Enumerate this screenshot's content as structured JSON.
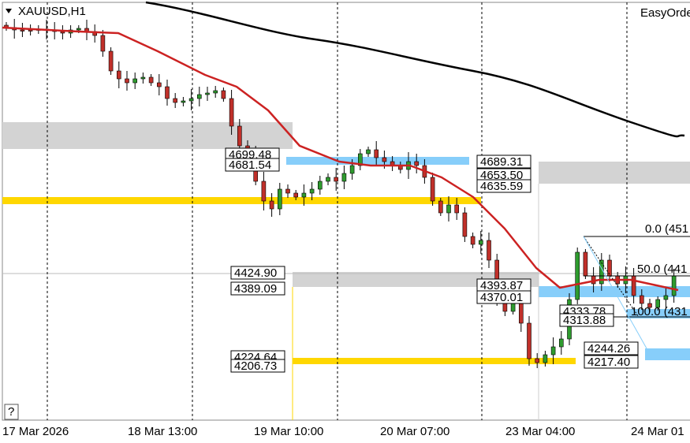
{
  "header": {
    "symbol": "XAUUSD,H1",
    "panel": "EasyOrde"
  },
  "price_labels": [
    "4699.48",
    "4681.54",
    "4689.31",
    "4653.50",
    "4635.59",
    "4424.90",
    "4389.09",
    "4393.87",
    "4370.01",
    "4333.78",
    "4313.88",
    "4244.26",
    "4217.40",
    "4224.64",
    "4206.73"
  ],
  "fib_labels": [
    "0.0 (451",
    "50.0 (441",
    "100.0 (431"
  ],
  "time_axis": [
    "17 Mar 2026",
    "18 Mar 13:00",
    "19 Mar 10:00",
    "20 Mar 07:00",
    "23 Mar 04:00",
    "24 Mar 01"
  ],
  "help": "?"
}
